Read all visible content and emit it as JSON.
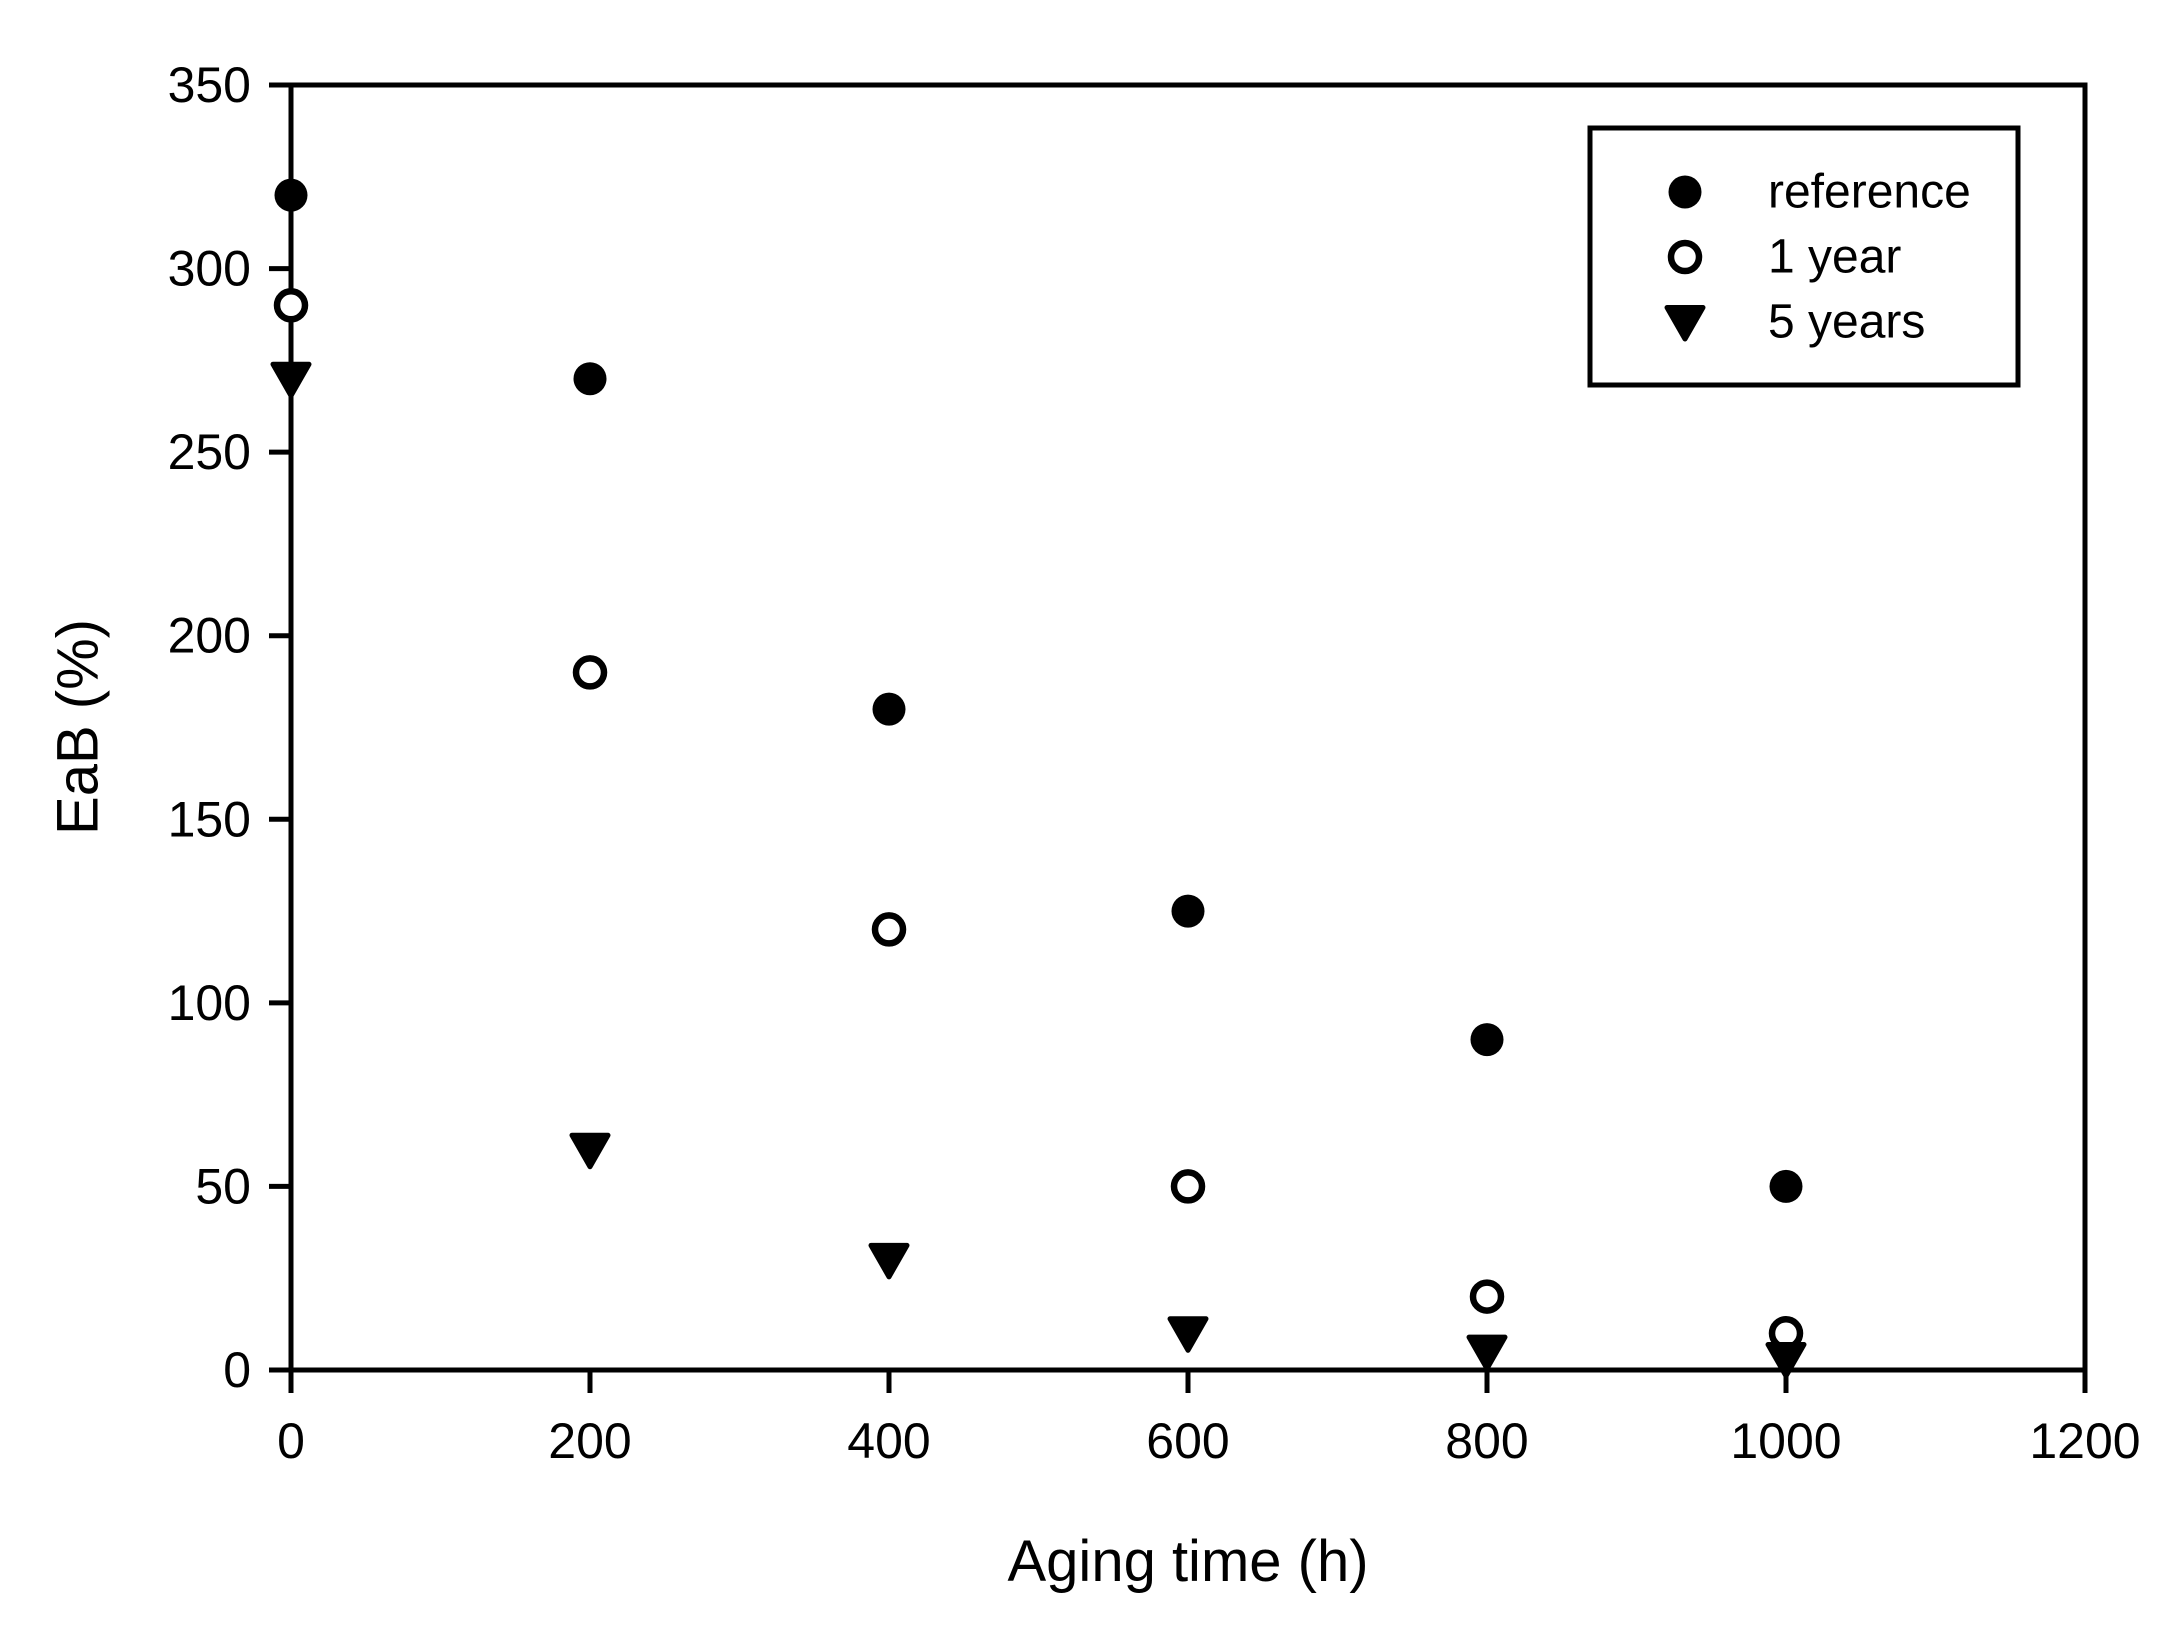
{
  "chart_data": {
    "type": "scatter",
    "title": "",
    "xlabel": "Aging time (h)",
    "ylabel": "EaB (%)",
    "xlim": [
      0,
      1200
    ],
    "ylim": [
      0,
      350
    ],
    "x_ticks": [
      0,
      200,
      400,
      600,
      800,
      1000,
      1200
    ],
    "y_ticks": [
      0,
      50,
      100,
      150,
      200,
      250,
      300,
      350
    ],
    "grid": false,
    "legend_position": "top-right",
    "background_color": "#ffffff",
    "foreground_color": "#000000",
    "series": [
      {
        "name": "reference",
        "marker": "filled-circle",
        "x": [
          0,
          200,
          400,
          600,
          800,
          1000
        ],
        "y": [
          320,
          270,
          180,
          125,
          90,
          50
        ]
      },
      {
        "name": "1 year",
        "marker": "open-circle",
        "x": [
          0,
          200,
          400,
          600,
          800,
          1000
        ],
        "y": [
          290,
          190,
          120,
          50,
          20,
          10
        ]
      },
      {
        "name": "5 years",
        "marker": "filled-triangle-down",
        "x": [
          0,
          200,
          400,
          600,
          800,
          1000
        ],
        "y": [
          270,
          60,
          30,
          10,
          5,
          3
        ]
      }
    ]
  }
}
